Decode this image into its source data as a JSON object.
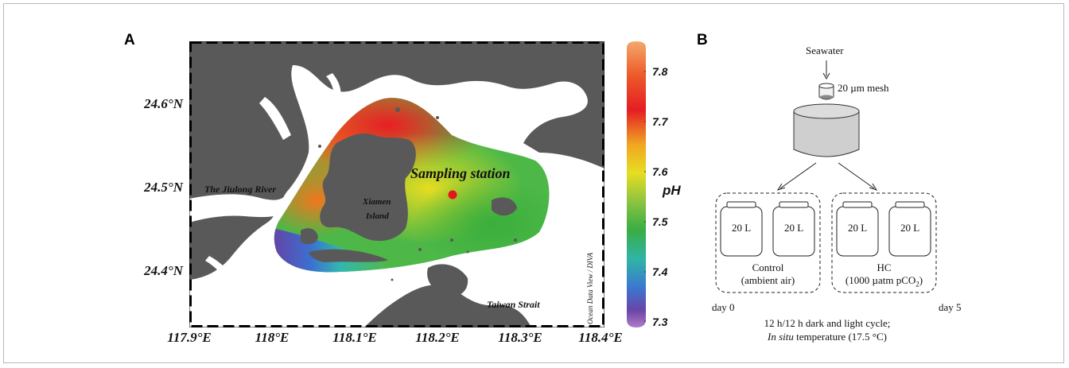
{
  "panel_a": {
    "label": "A",
    "lat_labels": [
      "24.6°N",
      "24.5°N",
      "24.4°N"
    ],
    "lon_labels": [
      "117.9°E",
      "118°E",
      "118.1°E",
      "118.2°E",
      "118.3°E",
      "118.4°E"
    ],
    "place_labels": {
      "river": "The Jiulong River",
      "island_line1": "Xiamen",
      "island_line2": "Island",
      "station": "Sampling station",
      "strait": "Taiwan Strait"
    },
    "credit": "Ocean Data View / DIVA",
    "colorbar": {
      "title": "pH",
      "ticks": [
        "7.8",
        "7.7",
        "7.6",
        "7.5",
        "7.4",
        "7.3"
      ],
      "range": [
        7.3,
        7.85
      ]
    },
    "colors": {
      "land": "#595959",
      "water": "#ffffff",
      "station_dot": "#e8141c"
    }
  },
  "panel_b": {
    "label": "B",
    "source": "Seawater",
    "mesh": "20 µm mesh",
    "jar_volume": "20 L",
    "control_label": "Control",
    "control_detail": "(ambient air)",
    "hc_label": "HC",
    "hc_detail_prefix": "(1000 µatm pCO",
    "hc_detail_sub": "2",
    "hc_detail_suffix": ")",
    "day_start": "day 0",
    "day_end": "day 5",
    "cycle": "12 h/12 h dark and light cycle;",
    "temp_italic": "In situ",
    "temp_rest": " temperature (17.5 °C)"
  }
}
